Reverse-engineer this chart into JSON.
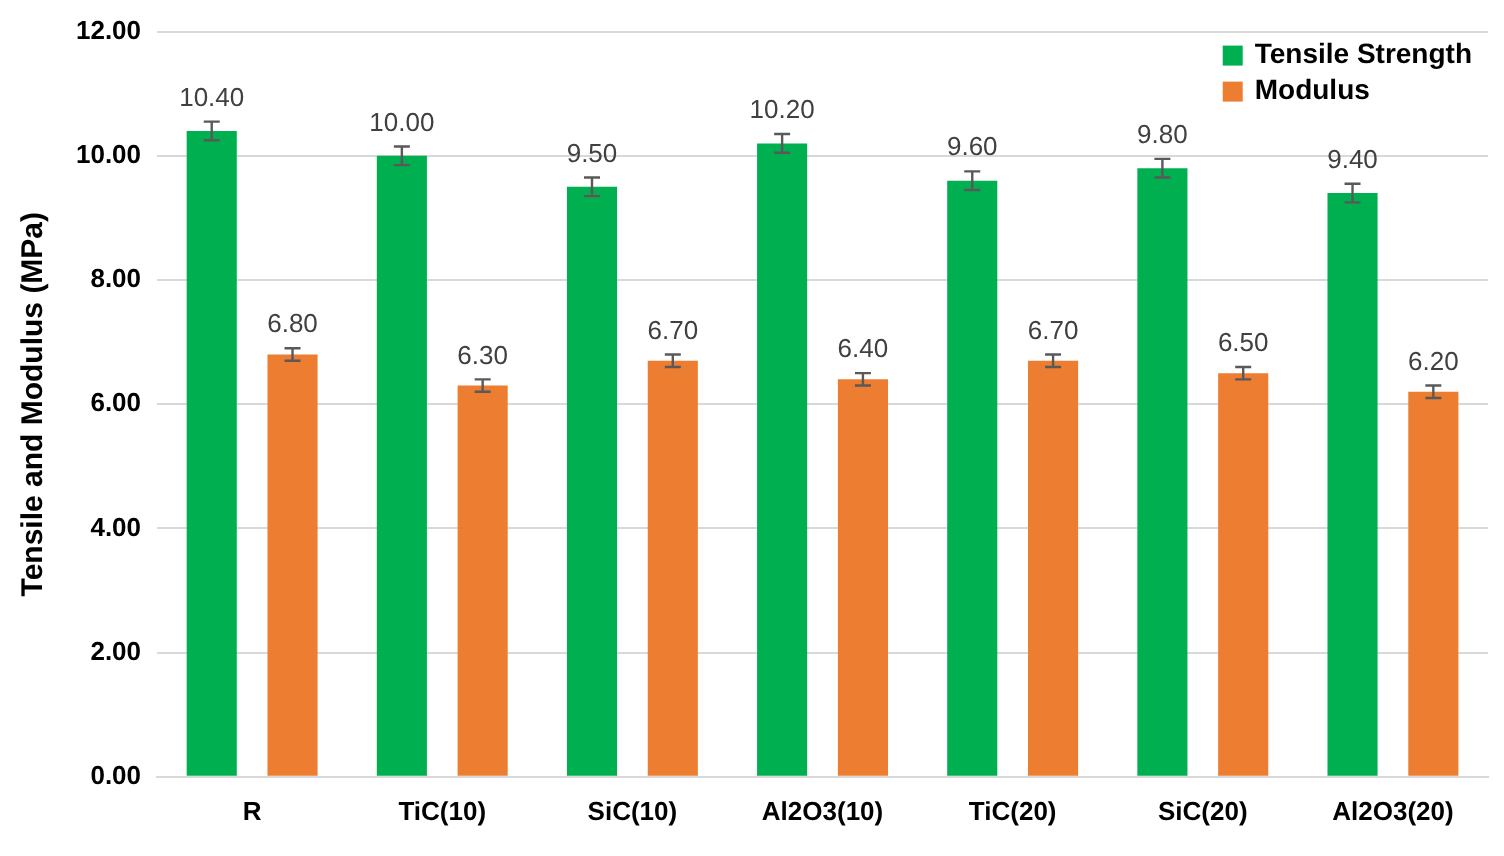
{
  "chart_data": {
    "type": "bar",
    "ylabel": "Tensile and Modulus (MPa)",
    "categories": [
      "R",
      "TiC(10)",
      "SiC(10)",
      "Al2O3(10)",
      "TiC(20)",
      "SiC(20)",
      "Al2O3(20)"
    ],
    "series": [
      {
        "name": "Tensile Strength",
        "color": "#00b050",
        "values": [
          10.4,
          10.0,
          9.5,
          10.2,
          9.6,
          9.8,
          9.4
        ],
        "errors": [
          0.15,
          0.15,
          0.15,
          0.15,
          0.15,
          0.15,
          0.15
        ],
        "value_labels": [
          "10.40",
          "10.00",
          "9.50",
          "10.20",
          "9.60",
          "9.80",
          "9.40"
        ]
      },
      {
        "name": "Modulus",
        "color": "#ed7d31",
        "values": [
          6.8,
          6.3,
          6.7,
          6.4,
          6.7,
          6.5,
          6.2
        ],
        "errors": [
          0.1,
          0.1,
          0.1,
          0.1,
          0.1,
          0.1,
          0.1
        ],
        "value_labels": [
          "6.80",
          "6.30",
          "6.70",
          "6.40",
          "6.70",
          "6.50",
          "6.20"
        ]
      }
    ],
    "ylim": [
      0,
      12
    ],
    "yticks": [
      {
        "value": 0,
        "label": "0.00"
      },
      {
        "value": 2,
        "label": "2.00"
      },
      {
        "value": 4,
        "label": "4.00"
      },
      {
        "value": 6,
        "label": "6.00"
      },
      {
        "value": 8,
        "label": "8.00"
      },
      {
        "value": 10,
        "label": "10.00"
      },
      {
        "value": 12,
        "label": "12.00"
      }
    ],
    "grid": "y",
    "legend": "top right"
  }
}
